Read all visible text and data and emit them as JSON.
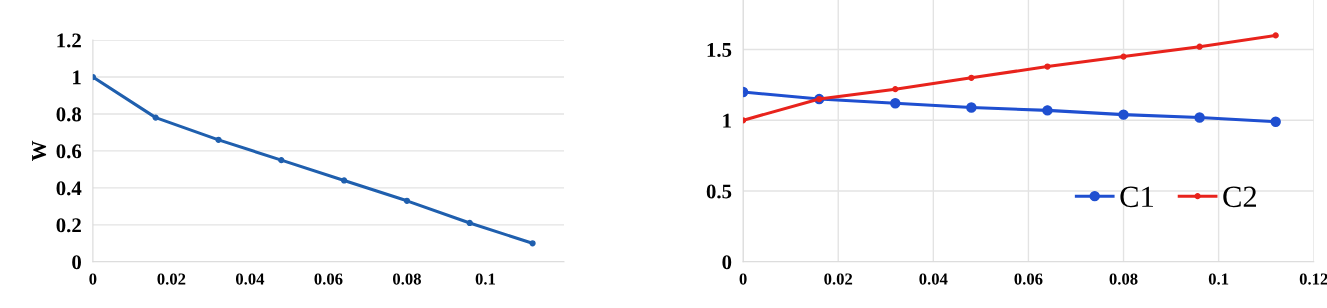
{
  "chart_data": [
    {
      "type": "line",
      "ylabel": "W",
      "x": [
        0,
        0.016,
        0.032,
        0.048,
        0.064,
        0.08,
        0.096,
        0.112
      ],
      "series": [
        {
          "color": "#1f5fae",
          "values": [
            1.0,
            0.78,
            0.66,
            0.55,
            0.44,
            0.33,
            0.21,
            0.1
          ]
        }
      ],
      "xlim": [
        0,
        0.12
      ],
      "xticks": [
        0,
        0.02,
        0.04,
        0.06,
        0.08,
        0.1
      ],
      "ylim": [
        0,
        1.2
      ],
      "yticks": [
        0,
        0.2,
        0.4,
        0.6,
        0.8,
        1,
        1.2
      ],
      "grid": "y",
      "marker": "circle",
      "line_style": "solid",
      "legend": false
    },
    {
      "type": "line",
      "x": [
        0,
        0.016,
        0.032,
        0.048,
        0.064,
        0.08,
        0.096,
        0.112
      ],
      "series": [
        {
          "name": "C1",
          "color": "#1f4fd0",
          "values": [
            1.2,
            1.15,
            1.12,
            1.09,
            1.07,
            1.04,
            1.02,
            0.99
          ]
        },
        {
          "name": "C2",
          "color": "#e8231c",
          "values": [
            1.0,
            1.15,
            1.22,
            1.3,
            1.38,
            1.45,
            1.52,
            1.6
          ]
        }
      ],
      "xlim": [
        0,
        0.12
      ],
      "xticks": [
        0,
        0.02,
        0.04,
        0.06,
        0.08,
        0.1,
        0.12
      ],
      "ylim": [
        0,
        1.85
      ],
      "yticks": [
        0,
        0.5,
        1,
        1.5
      ],
      "grid": true,
      "marker": "circle",
      "line_style": "solid",
      "legend": "lower right"
    }
  ]
}
